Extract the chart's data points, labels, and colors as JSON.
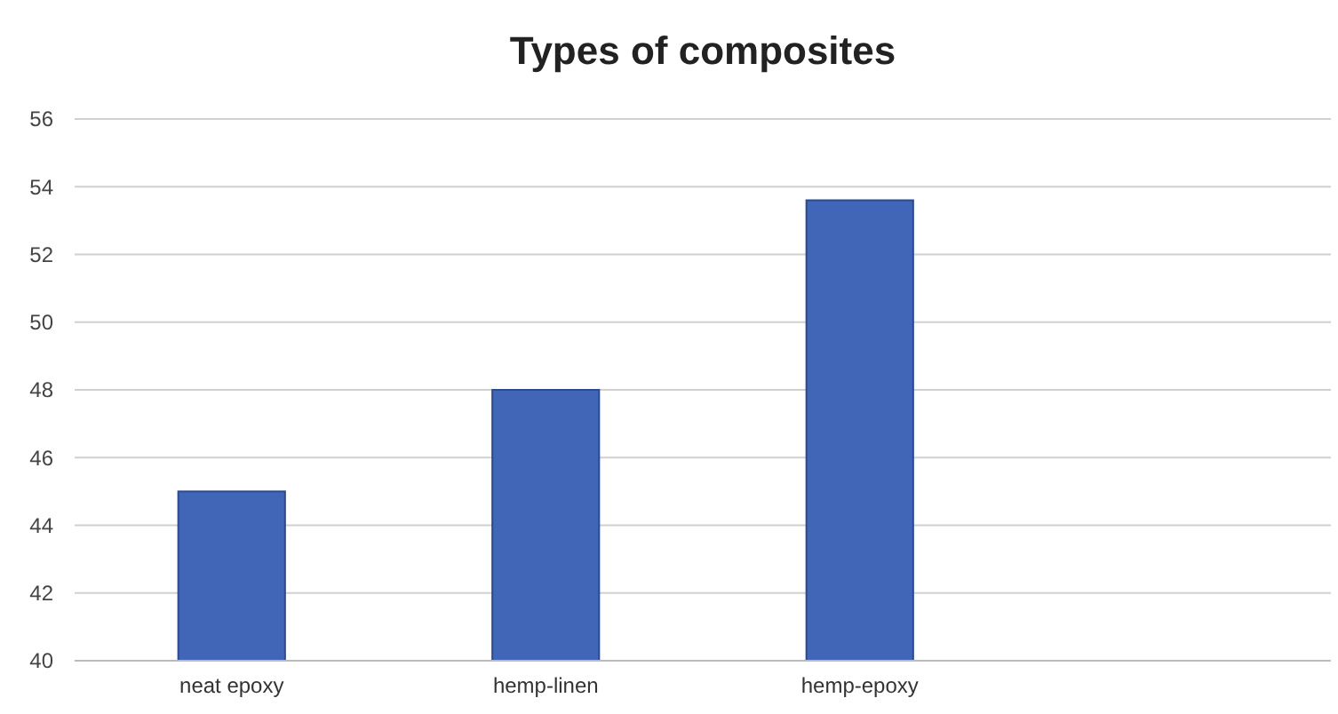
{
  "chart_data": {
    "type": "bar",
    "title": "Types of composites",
    "categories": [
      "neat epoxy",
      "hemp-linen",
      "hemp-epoxy",
      null
    ],
    "values": [
      45,
      48,
      53.6,
      null
    ],
    "color": "#4166b8",
    "ylim": [
      40,
      56
    ],
    "yticks": [
      40,
      42,
      44,
      46,
      48,
      50,
      52,
      54,
      56
    ],
    "grid": "y"
  }
}
